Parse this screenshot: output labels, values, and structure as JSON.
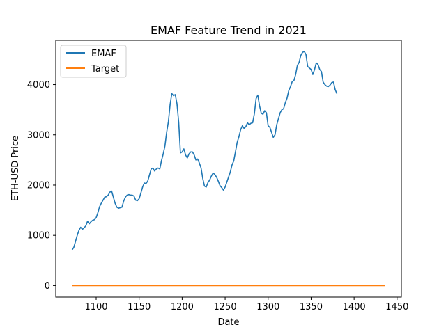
{
  "chart_data": {
    "type": "line",
    "title": "EMAF Feature Trend in 2021",
    "xlabel": "Date",
    "ylabel": "ETH-USD Price",
    "xlim": [
      1053,
      1455
    ],
    "ylim": [
      -230,
      4880
    ],
    "xticks": [
      1100,
      1150,
      1200,
      1250,
      1300,
      1350,
      1400,
      1450
    ],
    "yticks": [
      0,
      1000,
      2000,
      3000,
      4000
    ],
    "legend": "upper-left",
    "grid": false,
    "series": [
      {
        "name": "EMAF",
        "color": "#1f77b4",
        "points": [
          [
            1072,
            710
          ],
          [
            1074,
            760
          ],
          [
            1076,
            880
          ],
          [
            1078,
            1000
          ],
          [
            1080,
            1100
          ],
          [
            1082,
            1160
          ],
          [
            1084,
            1120
          ],
          [
            1086,
            1150
          ],
          [
            1088,
            1190
          ],
          [
            1090,
            1280
          ],
          [
            1092,
            1230
          ],
          [
            1094,
            1270
          ],
          [
            1096,
            1300
          ],
          [
            1098,
            1310
          ],
          [
            1100,
            1350
          ],
          [
            1102,
            1450
          ],
          [
            1104,
            1570
          ],
          [
            1106,
            1640
          ],
          [
            1108,
            1700
          ],
          [
            1110,
            1760
          ],
          [
            1112,
            1770
          ],
          [
            1114,
            1800
          ],
          [
            1116,
            1860
          ],
          [
            1118,
            1880
          ],
          [
            1120,
            1760
          ],
          [
            1122,
            1640
          ],
          [
            1124,
            1560
          ],
          [
            1126,
            1540
          ],
          [
            1128,
            1550
          ],
          [
            1130,
            1560
          ],
          [
            1132,
            1680
          ],
          [
            1134,
            1760
          ],
          [
            1136,
            1800
          ],
          [
            1138,
            1810
          ],
          [
            1140,
            1800
          ],
          [
            1142,
            1800
          ],
          [
            1144,
            1780
          ],
          [
            1146,
            1700
          ],
          [
            1148,
            1690
          ],
          [
            1150,
            1730
          ],
          [
            1152,
            1840
          ],
          [
            1154,
            1960
          ],
          [
            1156,
            2040
          ],
          [
            1158,
            2030
          ],
          [
            1160,
            2080
          ],
          [
            1162,
            2200
          ],
          [
            1164,
            2320
          ],
          [
            1166,
            2340
          ],
          [
            1168,
            2280
          ],
          [
            1170,
            2320
          ],
          [
            1172,
            2340
          ],
          [
            1174,
            2320
          ],
          [
            1176,
            2490
          ],
          [
            1178,
            2620
          ],
          [
            1180,
            2780
          ],
          [
            1182,
            3050
          ],
          [
            1184,
            3260
          ],
          [
            1186,
            3600
          ],
          [
            1188,
            3820
          ],
          [
            1190,
            3780
          ],
          [
            1192,
            3800
          ],
          [
            1194,
            3620
          ],
          [
            1196,
            3250
          ],
          [
            1198,
            2640
          ],
          [
            1200,
            2660
          ],
          [
            1202,
            2720
          ],
          [
            1204,
            2600
          ],
          [
            1206,
            2540
          ],
          [
            1208,
            2620
          ],
          [
            1210,
            2660
          ],
          [
            1212,
            2660
          ],
          [
            1214,
            2600
          ],
          [
            1216,
            2500
          ],
          [
            1218,
            2520
          ],
          [
            1220,
            2440
          ],
          [
            1222,
            2340
          ],
          [
            1224,
            2130
          ],
          [
            1226,
            1980
          ],
          [
            1228,
            1960
          ],
          [
            1230,
            2050
          ],
          [
            1232,
            2100
          ],
          [
            1234,
            2180
          ],
          [
            1236,
            2240
          ],
          [
            1238,
            2210
          ],
          [
            1240,
            2160
          ],
          [
            1242,
            2080
          ],
          [
            1244,
            1990
          ],
          [
            1246,
            1950
          ],
          [
            1248,
            1900
          ],
          [
            1250,
            1960
          ],
          [
            1252,
            2060
          ],
          [
            1254,
            2160
          ],
          [
            1256,
            2260
          ],
          [
            1258,
            2400
          ],
          [
            1260,
            2480
          ],
          [
            1262,
            2660
          ],
          [
            1264,
            2850
          ],
          [
            1266,
            2960
          ],
          [
            1268,
            3100
          ],
          [
            1270,
            3180
          ],
          [
            1272,
            3130
          ],
          [
            1274,
            3160
          ],
          [
            1276,
            3240
          ],
          [
            1278,
            3200
          ],
          [
            1280,
            3230
          ],
          [
            1282,
            3240
          ],
          [
            1284,
            3420
          ],
          [
            1286,
            3720
          ],
          [
            1288,
            3790
          ],
          [
            1290,
            3580
          ],
          [
            1292,
            3430
          ],
          [
            1294,
            3410
          ],
          [
            1296,
            3480
          ],
          [
            1298,
            3440
          ],
          [
            1300,
            3180
          ],
          [
            1302,
            3150
          ],
          [
            1304,
            3050
          ],
          [
            1306,
            2950
          ],
          [
            1308,
            3000
          ],
          [
            1310,
            3200
          ],
          [
            1312,
            3320
          ],
          [
            1314,
            3440
          ],
          [
            1316,
            3500
          ],
          [
            1318,
            3520
          ],
          [
            1320,
            3640
          ],
          [
            1322,
            3730
          ],
          [
            1324,
            3880
          ],
          [
            1326,
            3960
          ],
          [
            1328,
            4060
          ],
          [
            1330,
            4080
          ],
          [
            1332,
            4200
          ],
          [
            1334,
            4380
          ],
          [
            1336,
            4440
          ],
          [
            1338,
            4580
          ],
          [
            1340,
            4640
          ],
          [
            1342,
            4660
          ],
          [
            1344,
            4600
          ],
          [
            1346,
            4360
          ],
          [
            1348,
            4330
          ],
          [
            1350,
            4300
          ],
          [
            1352,
            4200
          ],
          [
            1354,
            4300
          ],
          [
            1356,
            4430
          ],
          [
            1358,
            4400
          ],
          [
            1360,
            4300
          ],
          [
            1362,
            4260
          ],
          [
            1364,
            4050
          ],
          [
            1366,
            4000
          ],
          [
            1368,
            3970
          ],
          [
            1370,
            3960
          ],
          [
            1372,
            3990
          ],
          [
            1374,
            4040
          ],
          [
            1376,
            4050
          ],
          [
            1378,
            3900
          ],
          [
            1380,
            3820
          ]
        ]
      },
      {
        "name": "Target",
        "color": "#ff7f0e",
        "points": [
          [
            1072,
            0
          ],
          [
            1436,
            0
          ]
        ]
      }
    ]
  }
}
